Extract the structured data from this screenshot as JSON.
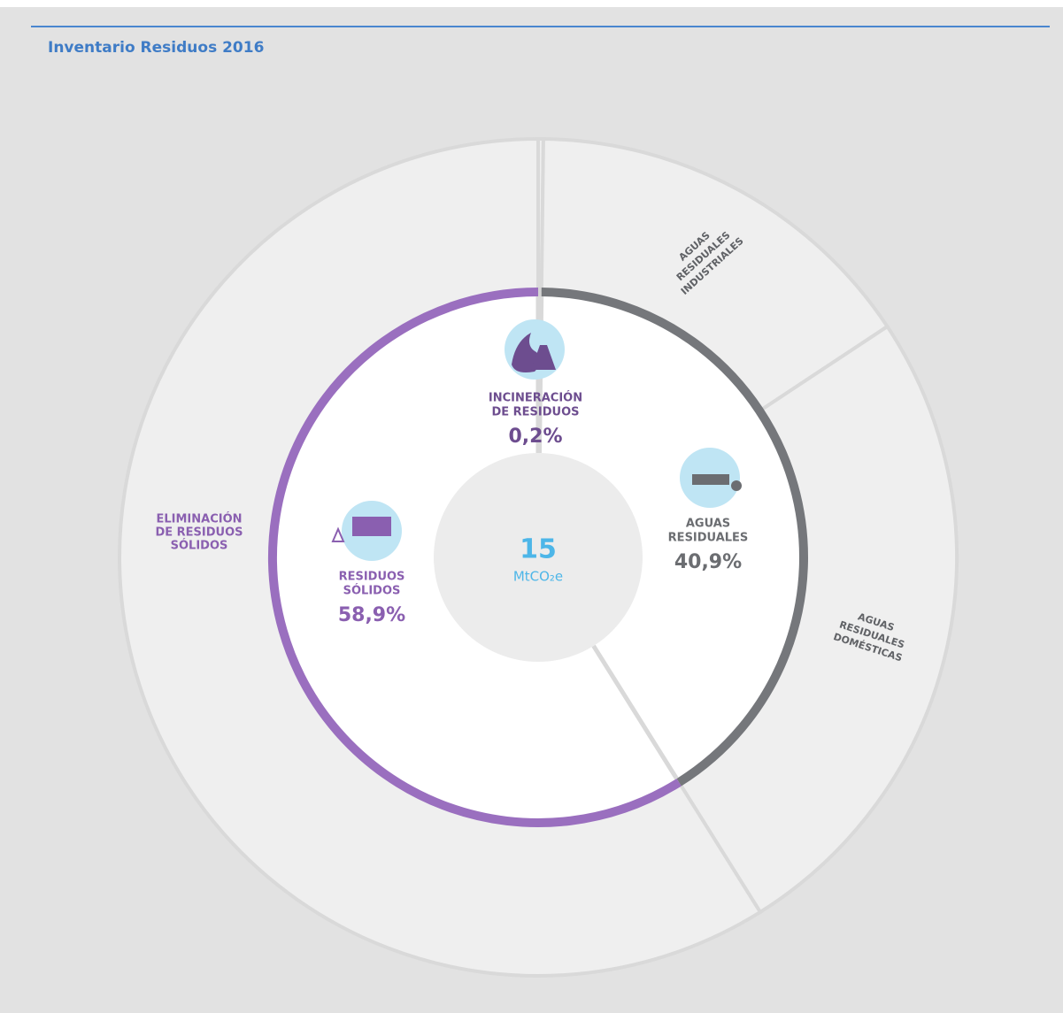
{
  "chart_data": {
    "type": "sunburst",
    "title": "Inventario Residuos 2016",
    "center_value": 15,
    "center_unit": "MtCO₂e",
    "inner": [
      {
        "name": [
          "INCINERACIÓN",
          "DE RESIDUOS"
        ],
        "value": 0.2,
        "value_label": "0,2%",
        "color": "#d3d3d3",
        "label_color": "#6d4d8f"
      },
      {
        "name": [
          "AGUAS",
          "RESIDUALES"
        ],
        "value": 40.9,
        "value_label": "40,9%",
        "color": "#75777b",
        "label_color": "#6b6d71"
      },
      {
        "name": [
          "RESIDUOS",
          "SÓLIDOS"
        ],
        "value": 58.9,
        "value_label": "58,9%",
        "color": "#9a6fbf",
        "label_color": "#8a5fb0"
      }
    ],
    "outer": [
      {
        "name": null,
        "value": 0.2
      },
      {
        "name": [
          "AGUAS",
          "RESIDUALES",
          "INDUSTRIALES"
        ],
        "value": 15.5
      },
      {
        "name": [
          "AGUAS",
          "RESIDUALES",
          "DOMÉSTICAS"
        ],
        "value": 25.4
      },
      {
        "name": [
          "ELIMINACIÓN",
          "DE RESIDUOS",
          "SÓLIDOS"
        ],
        "value": 58.9
      }
    ]
  }
}
